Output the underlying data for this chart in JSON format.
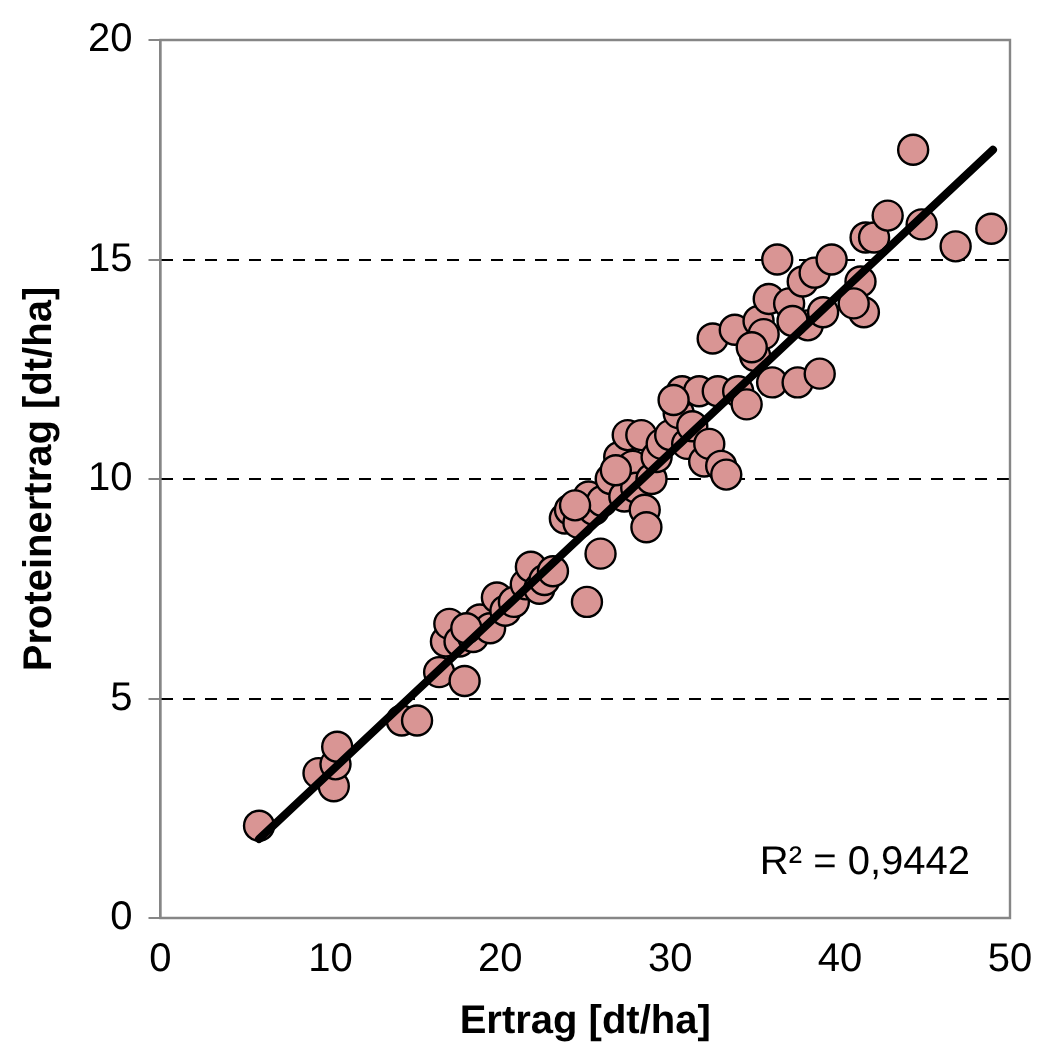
{
  "chart_data": {
    "type": "scatter",
    "xlabel": "Ertrag [dt/ha]",
    "ylabel": "Proteinertrag [dt/ha]",
    "xlim": [
      0,
      50
    ],
    "ylim": [
      0,
      20
    ],
    "xticks": [
      0,
      10,
      20,
      30,
      40,
      50
    ],
    "yticks": [
      0,
      5,
      10,
      15,
      20
    ],
    "grid": "y",
    "marker": "circle",
    "annotations": [
      "R² = 0,9442"
    ],
    "series": [
      {
        "color": "#d99594",
        "x": [
          5.8,
          9.3,
          10.2,
          10.3,
          10.4,
          14.2,
          15.1,
          16.4,
          16.8,
          17,
          17.6,
          17.9,
          18.4,
          18.8,
          19.4,
          19.8,
          20.3,
          20.8,
          21.5,
          21.8,
          22.3,
          22.6,
          23.1,
          23.8,
          24.1,
          24.6,
          25.1,
          25.2,
          25.5,
          25.9,
          26,
          26.5,
          27,
          27.3,
          27.5,
          27.8,
          28,
          28.3,
          28.5,
          28.6,
          28.9,
          29.2,
          29.5,
          30,
          30.5,
          30.7,
          31,
          31.3,
          31.7,
          32,
          32.3,
          32.5,
          32.8,
          33,
          33.3,
          33.8,
          34,
          34.5,
          35,
          35.2,
          35.5,
          35.8,
          36,
          36.3,
          37,
          37.5,
          37.8,
          38.1,
          38.5,
          38.8,
          39,
          39.5,
          41.2,
          41.4,
          41.5,
          42,
          42.8,
          44.3,
          44.8,
          46.8,
          48.9,
          40.8,
          37.2,
          34.8,
          30.2,
          26.8,
          24.4,
          18
        ],
        "values": [
          2.1,
          3.3,
          3,
          3.5,
          3.9,
          4.5,
          4.5,
          5.6,
          6.3,
          6.7,
          6.3,
          5.4,
          6.4,
          6.8,
          6.6,
          7.3,
          7,
          7.2,
          7.6,
          8,
          7.5,
          7.7,
          7.9,
          9.1,
          9.3,
          9,
          7.2,
          9.6,
          9.3,
          8.3,
          9.5,
          10,
          10.5,
          9.6,
          11,
          10.3,
          9.8,
          11,
          9.3,
          8.9,
          10,
          10.5,
          10.8,
          11,
          11.5,
          12,
          10.8,
          11.2,
          12,
          10.4,
          10.8,
          13.2,
          12,
          10.3,
          10.1,
          13.4,
          12,
          11.7,
          12.8,
          13.6,
          13.3,
          14.1,
          12.2,
          15,
          14,
          12.2,
          14.5,
          13.5,
          14.7,
          12.4,
          13.8,
          15,
          14.5,
          13.8,
          15.5,
          15.5,
          16,
          17.5,
          15.8,
          15.3,
          15.7,
          14,
          13.6,
          13,
          11.8,
          10.2,
          9.4,
          6.6
        ]
      },
      {
        "type": "line",
        "color": "#000000",
        "marker": "none",
        "x": [
          5.8,
          49
        ],
        "values": [
          1.8,
          17.5
        ]
      }
    ]
  }
}
